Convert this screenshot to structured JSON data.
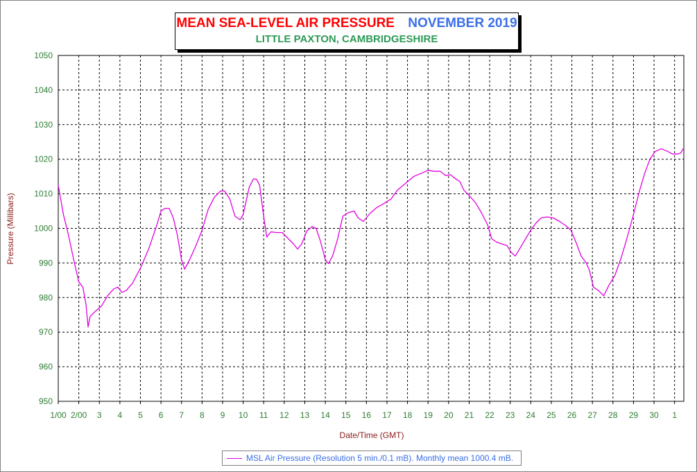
{
  "title": {
    "main": "MEAN SEA-LEVEL AIR PRESSURE",
    "month": "NOVEMBER 2019",
    "subtitle": "LITTLE PAXTON, CAMBRIDGESHIRE"
  },
  "colors": {
    "series": "#e000e0",
    "title_main": "#ff0000",
    "title_month": "#3a6ee8",
    "subtitle": "#2e9a57",
    "ticks": "#2e7d32",
    "axis_labels": "#8b1a1a",
    "legend_text": "#3a6ee8"
  },
  "chart_data": {
    "type": "line",
    "title": "MEAN SEA-LEVEL AIR PRESSURE  NOVEMBER 2019",
    "subtitle": "LITTLE PAXTON, CAMBRIDGESHIRE",
    "xlabel": "Date/Time (GMT)",
    "ylabel": "Pressure (Millibars)",
    "ylim": [
      950,
      1050
    ],
    "yticks": [
      950,
      960,
      970,
      980,
      990,
      1000,
      1010,
      1020,
      1030,
      1040,
      1050
    ],
    "xlim": [
      1,
      31.45
    ],
    "x_ticks": [
      {
        "pos": 1,
        "label": "1/00"
      },
      {
        "pos": 2,
        "label": "2/00"
      },
      {
        "pos": 3,
        "label": "3"
      },
      {
        "pos": 4,
        "label": "4"
      },
      {
        "pos": 5,
        "label": "5"
      },
      {
        "pos": 6,
        "label": "6"
      },
      {
        "pos": 7,
        "label": "7"
      },
      {
        "pos": 8,
        "label": "8"
      },
      {
        "pos": 9,
        "label": "9"
      },
      {
        "pos": 10,
        "label": "10"
      },
      {
        "pos": 11,
        "label": "11"
      },
      {
        "pos": 12,
        "label": "12"
      },
      {
        "pos": 13,
        "label": "13"
      },
      {
        "pos": 14,
        "label": "14"
      },
      {
        "pos": 15,
        "label": "15"
      },
      {
        "pos": 16,
        "label": "16"
      },
      {
        "pos": 17,
        "label": "17"
      },
      {
        "pos": 18,
        "label": "18"
      },
      {
        "pos": 19,
        "label": "19"
      },
      {
        "pos": 20,
        "label": "20"
      },
      {
        "pos": 21,
        "label": "21"
      },
      {
        "pos": 22,
        "label": "22"
      },
      {
        "pos": 23,
        "label": "23"
      },
      {
        "pos": 24,
        "label": "24"
      },
      {
        "pos": 25,
        "label": "25"
      },
      {
        "pos": 26,
        "label": "26"
      },
      {
        "pos": 27,
        "label": "27"
      },
      {
        "pos": 28,
        "label": "28"
      },
      {
        "pos": 29,
        "label": "29"
      },
      {
        "pos": 30,
        "label": "30"
      },
      {
        "pos": 31,
        "label": "1"
      }
    ],
    "grid": true,
    "legend_position": "bottom-center",
    "series": [
      {
        "name": "MSL Air Pressure (Resolution 5 min./0.1 mB). Monthly mean 1000.4 mB.",
        "points": [
          [
            1.0,
            1012.5
          ],
          [
            1.25,
            1004
          ],
          [
            1.5,
            998
          ],
          [
            1.75,
            991
          ],
          [
            2.0,
            984.5
          ],
          [
            2.2,
            983
          ],
          [
            2.35,
            978
          ],
          [
            2.45,
            971.5
          ],
          [
            2.55,
            974.5
          ],
          [
            2.8,
            976
          ],
          [
            3.1,
            977.5
          ],
          [
            3.4,
            980.5
          ],
          [
            3.7,
            982.5
          ],
          [
            3.9,
            983
          ],
          [
            4.1,
            981.5
          ],
          [
            4.3,
            982
          ],
          [
            4.6,
            984
          ],
          [
            5.0,
            988.5
          ],
          [
            5.4,
            994
          ],
          [
            5.8,
            1001
          ],
          [
            6.0,
            1005
          ],
          [
            6.2,
            1005.8
          ],
          [
            6.4,
            1005.8
          ],
          [
            6.6,
            1003
          ],
          [
            6.8,
            998
          ],
          [
            7.0,
            991
          ],
          [
            7.15,
            988.2
          ],
          [
            7.4,
            991
          ],
          [
            7.7,
            995
          ],
          [
            8.0,
            999.5
          ],
          [
            8.3,
            1005.5
          ],
          [
            8.6,
            1009
          ],
          [
            8.9,
            1010.8
          ],
          [
            9.1,
            1010.8
          ],
          [
            9.35,
            1008.5
          ],
          [
            9.6,
            1003.5
          ],
          [
            9.85,
            1002.5
          ],
          [
            10.0,
            1004
          ],
          [
            10.3,
            1012
          ],
          [
            10.5,
            1014.3
          ],
          [
            10.65,
            1014.2
          ],
          [
            10.8,
            1012.5
          ],
          [
            11.0,
            1003.5
          ],
          [
            11.15,
            997.5
          ],
          [
            11.35,
            999
          ],
          [
            11.6,
            998.8
          ],
          [
            11.9,
            998.8
          ],
          [
            12.2,
            997
          ],
          [
            12.45,
            995.5
          ],
          [
            12.65,
            994
          ],
          [
            12.85,
            995.5
          ],
          [
            13.1,
            999.2
          ],
          [
            13.35,
            1000.5
          ],
          [
            13.55,
            1000
          ],
          [
            13.75,
            996.5
          ],
          [
            14.0,
            991
          ],
          [
            14.15,
            989.8
          ],
          [
            14.35,
            992
          ],
          [
            14.6,
            997
          ],
          [
            14.85,
            1003.5
          ],
          [
            15.1,
            1004.5
          ],
          [
            15.4,
            1005
          ],
          [
            15.6,
            1003
          ],
          [
            15.85,
            1002
          ],
          [
            16.2,
            1004.5
          ],
          [
            16.5,
            1006
          ],
          [
            16.8,
            1007
          ],
          [
            17.2,
            1008.5
          ],
          [
            17.5,
            1011
          ],
          [
            17.9,
            1013
          ],
          [
            18.3,
            1015
          ],
          [
            18.7,
            1016
          ],
          [
            19.0,
            1016.8
          ],
          [
            19.3,
            1016.5
          ],
          [
            19.6,
            1016.5
          ],
          [
            19.85,
            1015.3
          ],
          [
            20.1,
            1015.5
          ],
          [
            20.3,
            1014.5
          ],
          [
            20.55,
            1013.5
          ],
          [
            20.75,
            1011
          ],
          [
            21.0,
            1009.5
          ],
          [
            21.3,
            1007.5
          ],
          [
            21.6,
            1004.5
          ],
          [
            21.9,
            1001
          ],
          [
            22.1,
            997
          ],
          [
            22.35,
            996
          ],
          [
            22.6,
            995.5
          ],
          [
            22.85,
            995
          ],
          [
            23.05,
            993
          ],
          [
            23.25,
            992
          ],
          [
            23.5,
            994.5
          ],
          [
            23.8,
            997.5
          ],
          [
            24.0,
            999.5
          ],
          [
            24.25,
            1001.5
          ],
          [
            24.5,
            1003
          ],
          [
            24.8,
            1003.3
          ],
          [
            25.1,
            1003
          ],
          [
            25.4,
            1002
          ],
          [
            25.7,
            1000.8
          ],
          [
            25.95,
            999.5
          ],
          [
            26.2,
            996
          ],
          [
            26.45,
            992
          ],
          [
            26.7,
            990
          ],
          [
            26.85,
            988
          ],
          [
            27.05,
            983
          ],
          [
            27.3,
            982
          ],
          [
            27.55,
            980.5
          ],
          [
            27.8,
            983.5
          ],
          [
            28.1,
            986.5
          ],
          [
            28.4,
            991.5
          ],
          [
            28.7,
            997.5
          ],
          [
            29.0,
            1004
          ],
          [
            29.3,
            1011
          ],
          [
            29.55,
            1016
          ],
          [
            29.8,
            1020
          ],
          [
            30.05,
            1022.2
          ],
          [
            30.35,
            1023
          ],
          [
            30.65,
            1022.3
          ],
          [
            30.9,
            1021.5
          ],
          [
            31.15,
            1021.5
          ],
          [
            31.3,
            1021.8
          ],
          [
            31.42,
            1023
          ]
        ]
      }
    ]
  }
}
